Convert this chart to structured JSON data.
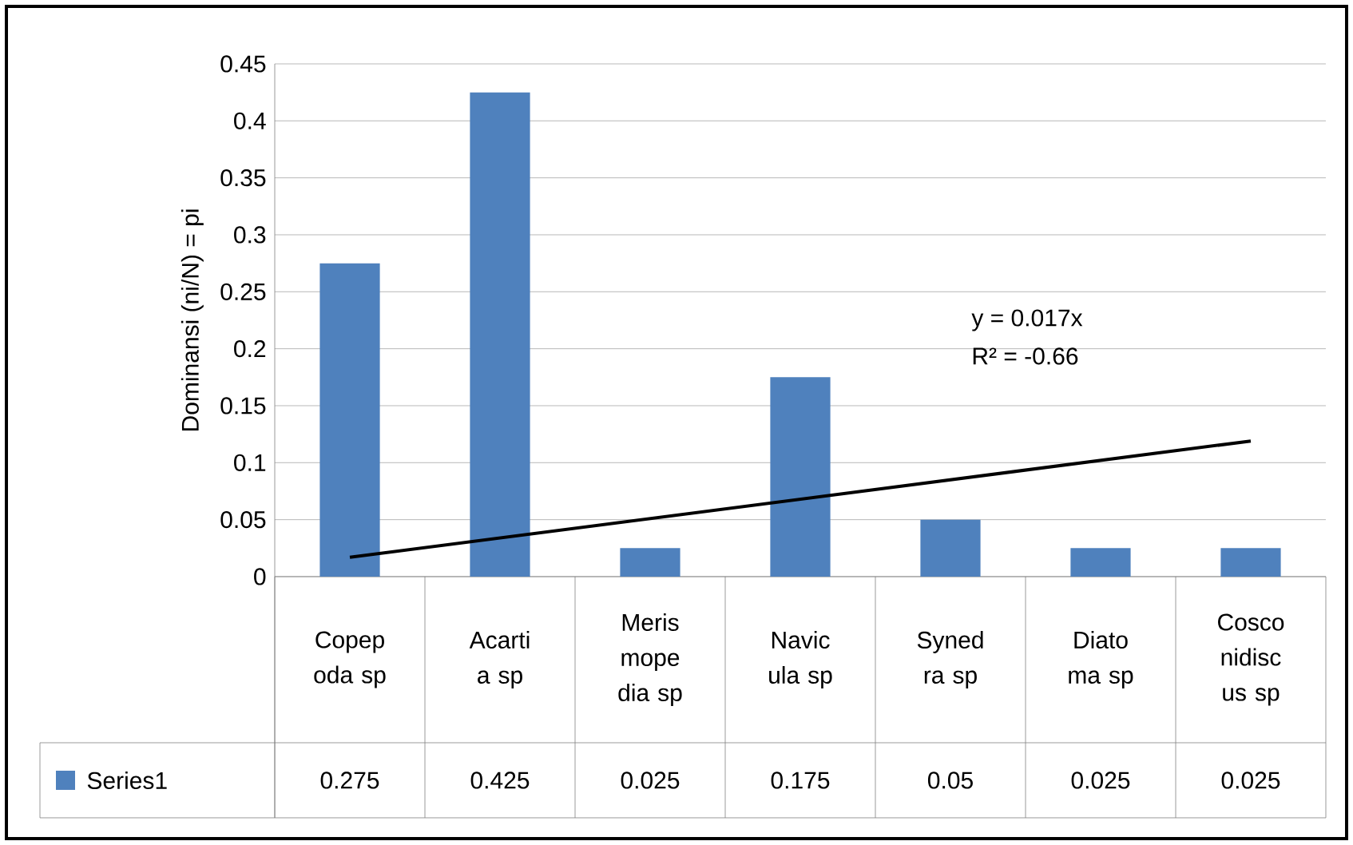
{
  "chart_data": {
    "type": "bar",
    "categories": [
      "Copep oda sp",
      "Acarti a sp",
      "Meris mope dia sp",
      "Navic ula sp",
      "Syned ra sp",
      "Diato ma sp",
      "Cosco nidisc us sp"
    ],
    "series": [
      {
        "name": "Series1",
        "color": "#4f81bd",
        "values": [
          0.275,
          0.425,
          0.025,
          0.175,
          0.05,
          0.025,
          0.025
        ],
        "value_labels": [
          "0.275",
          "0.425",
          "0.025",
          "0.175",
          "0.05",
          "0.025",
          "0.025"
        ]
      },
      {
        "type": "line",
        "color": "#000000",
        "values": [
          0.017,
          0.034,
          0.051,
          0.068,
          0.085,
          0.102,
          0.119
        ]
      }
    ],
    "ylabel": "Dominansi (ni/N) = pi",
    "ylim": [
      0,
      0.45
    ],
    "yticks": [
      0,
      0.05,
      0.1,
      0.15,
      0.2,
      0.25,
      0.3,
      0.35,
      0.4,
      0.45
    ],
    "grid": "y",
    "legend": "bottom",
    "marker": "none",
    "annotations": [
      "y = 0.017x",
      "R² = -0.66"
    ]
  }
}
